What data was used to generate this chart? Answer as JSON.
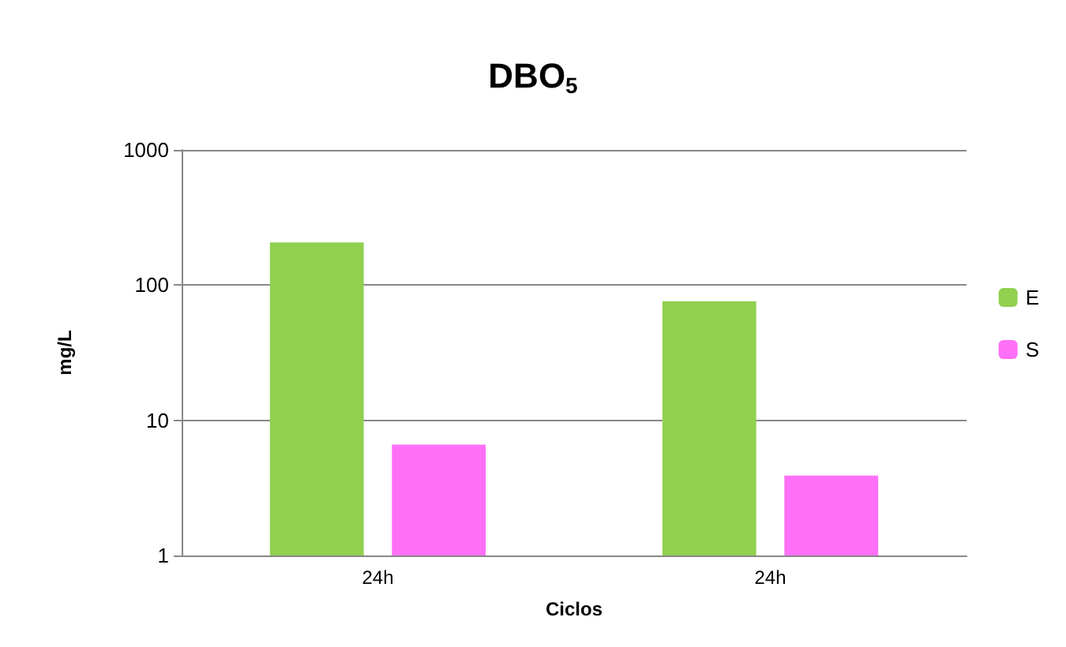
{
  "chart_data": {
    "type": "bar",
    "title": "DBO$_{5}$",
    "xlabel": "Ciclos",
    "ylabel": "mg/L",
    "categories": [
      "24h",
      "24h"
    ],
    "series": [
      {
        "name": "E",
        "color": "#92d050",
        "values": [
          207,
          76
        ]
      },
      {
        "name": "S",
        "color": "#ff6ff7",
        "values": [
          6.6,
          3.9
        ]
      }
    ],
    "log": "y",
    "ylim": [
      1,
      1000
    ],
    "yticks": [
      1,
      10,
      100,
      1000
    ],
    "grid": "y",
    "legend": "right"
  }
}
